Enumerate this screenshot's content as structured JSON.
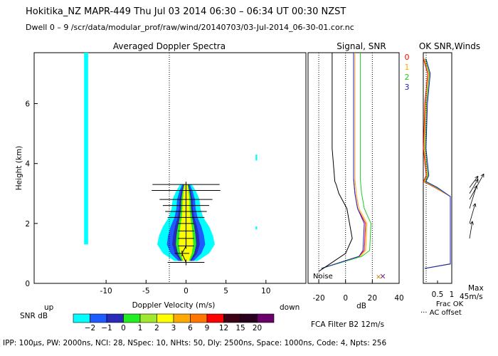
{
  "header": {
    "line1": "Hokitika_NZ   MAPR-449   Thu Jul 03 2014 06:30 – 06:34 UT 00:30 NZST",
    "line2": "Dwell   0  –   9    /scr/data/modular_prof/raw/wind/20140703/03-Jul-2014_06-30-01.cor.nc"
  },
  "footer": {
    "params": "IPP: 100μs,   PW: 2000ns,   NCI:  28,   NSpec: 10,  NHts: 50,   Dly: 2500ns,   Space: 1000ns,   Code: 4,   Npts: 256"
  },
  "colors": {
    "snr_scale": [
      "#00ffff",
      "#1e5cff",
      "#2a2ab8",
      "#22ee22",
      "#a0e830",
      "#ffff00",
      "#ffaa00",
      "#ff7700",
      "#ff0000",
      "#3d0014",
      "#28001e",
      "#6a006a"
    ],
    "beam_0": "#ff0000",
    "beam_1": "#ffaa00",
    "beam_2": "#22cc22",
    "beam_3": "#2222cc"
  },
  "chart_data": [
    {
      "type": "heatmap",
      "title": "Averaged Doppler Spectra",
      "xlabel": "Doppler Velocity (m/s)",
      "ylabel": "Height (km)",
      "xlim": [
        -19,
        15
      ],
      "ylim": [
        0,
        7.7
      ],
      "x_ticks": [
        "-10",
        "-5",
        "0",
        "5",
        "10"
      ],
      "y_ticks": [
        "0",
        "2",
        "4",
        "6"
      ],
      "left_note": "up",
      "right_note": "down",
      "colorbar": {
        "label": "SNR dB",
        "ticks": [
          "−2",
          "−1",
          "0",
          "1",
          "2",
          "3",
          "6",
          "9",
          "12",
          "15",
          "20"
        ]
      },
      "spectral_blobs": [
        {
          "v": -12.5,
          "h0": 1.3,
          "h1": 7.7,
          "halfwidth": 0.25
        },
        {
          "v": 8.8,
          "h0": 4.1,
          "h1": 4.3,
          "halfwidth": 0.1
        },
        {
          "v": 8.8,
          "h0": 1.8,
          "h1": 1.9,
          "halfwidth": 0.1
        }
      ],
      "peak_velocity": [
        {
          "h": 0.7,
          "v": 0.0,
          "err": 2.3
        },
        {
          "h": 1.0,
          "v": -0.5,
          "err": 0.9
        },
        {
          "h": 1.25,
          "v": 0.0,
          "err": 1.0
        },
        {
          "h": 1.5,
          "v": 0.0,
          "err": 1.0
        },
        {
          "h": 1.75,
          "v": 0.0,
          "err": 1.0
        },
        {
          "h": 2.0,
          "v": 0.0,
          "err": 1.0
        },
        {
          "h": 2.2,
          "v": 0.0,
          "err": 2.3
        },
        {
          "h": 2.4,
          "v": 0.0,
          "err": 2.6
        },
        {
          "h": 2.6,
          "v": 0.0,
          "err": 2.9
        },
        {
          "h": 2.8,
          "v": 0.0,
          "err": 3.3
        },
        {
          "h": 3.1,
          "v": 0.0,
          "err": 4.3
        },
        {
          "h": 3.3,
          "v": 0.0,
          "err": 4.2
        }
      ]
    },
    {
      "type": "line",
      "title": "Signal, SNR",
      "xlabel": "dB",
      "x_ticks": [
        "-20",
        "0",
        "20",
        "40"
      ],
      "xlim": [
        -28,
        40
      ],
      "ylim": [
        0,
        7.7
      ],
      "noise_label": "Noise",
      "series": [
        {
          "color_key": "beam_0",
          "x": [
            -18,
            10,
            14,
            15,
            9,
            7,
            6,
            6,
            6,
            6
          ],
          "y": [
            0.5,
            0.9,
            1.1,
            2.0,
            2.5,
            3.0,
            3.5,
            4.5,
            6.0,
            7.7
          ]
        },
        {
          "color_key": "beam_1",
          "x": [
            -18,
            11,
            15,
            16,
            10,
            8,
            7,
            7,
            7,
            7
          ],
          "y": [
            0.5,
            0.9,
            1.1,
            2.0,
            2.5,
            3.0,
            3.5,
            4.5,
            6.0,
            7.7
          ]
        },
        {
          "color_key": "beam_2",
          "x": [
            -18,
            12,
            18,
            19,
            14,
            12,
            11,
            11,
            11,
            11
          ],
          "y": [
            0.5,
            0.9,
            1.1,
            2.0,
            2.5,
            3.0,
            3.5,
            4.5,
            6.0,
            7.7
          ]
        },
        {
          "color_key": "beam_3",
          "x": [
            -18,
            10,
            13,
            14,
            9,
            7,
            6,
            6,
            6,
            6
          ],
          "y": [
            0.5,
            0.9,
            1.1,
            2.0,
            2.5,
            3.0,
            3.5,
            4.5,
            6.0,
            7.7
          ]
        },
        {
          "color_key": "black",
          "x": [
            -20,
            0,
            5,
            1,
            -5,
            -7,
            -8,
            -10,
            -10
          ],
          "y": [
            0.4,
            1.0,
            1.5,
            2.5,
            3.0,
            3.3,
            3.4,
            4.5,
            7.7
          ]
        }
      ]
    },
    {
      "type": "line",
      "title": "OK SNR,Winds",
      "beam_labels": [
        "0",
        "1",
        "2",
        "3"
      ],
      "x_ticks": [
        "0.5",
        "1"
      ],
      "xlabel": "Frac OK",
      "legend_note": "··· AC offset",
      "max_label": "Max",
      "max_value": "45m/s",
      "filter_note": "FCA Filter B2 12m/s",
      "frac_ok": [
        {
          "h": 0.5,
          "v": 0.05
        },
        {
          "h": 0.65,
          "v": 0.95
        },
        {
          "h": 2.0,
          "v": 0.95
        },
        {
          "h": 2.9,
          "v": 0.95
        },
        {
          "h": 3.2,
          "v": 0.45
        },
        {
          "h": 3.4,
          "v": 0.05
        },
        {
          "h": 3.6,
          "v": 0.15
        },
        {
          "h": 4.5,
          "v": 0.05
        },
        {
          "h": 6.0,
          "v": 0.1
        },
        {
          "h": 7.0,
          "v": 0.2
        },
        {
          "h": 7.5,
          "v": 0.05
        }
      ],
      "winds": [
        {
          "h": 1.5,
          "u": 0.1,
          "v": 0.6
        },
        {
          "h": 2.0,
          "u": 0.2,
          "v": 0.7
        },
        {
          "h": 2.5,
          "u": 0.25,
          "v": 0.8
        },
        {
          "h": 2.8,
          "u": 0.5,
          "v": 0.9
        },
        {
          "h": 3.0,
          "u": 0.3,
          "v": 0.5
        },
        {
          "h": 3.2,
          "u": 0.3,
          "v": 0.4
        }
      ]
    }
  ]
}
